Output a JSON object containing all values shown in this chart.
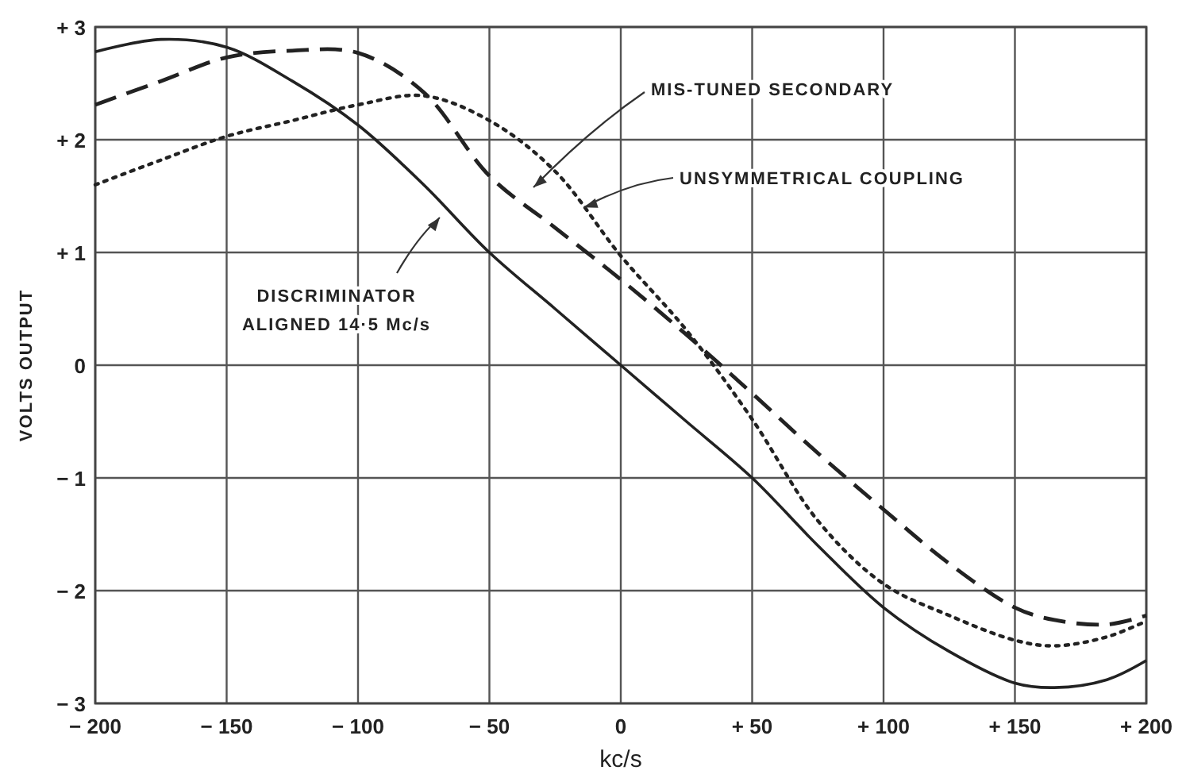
{
  "chart_data": {
    "type": "line",
    "xlabel": "kc/s",
    "ylabel": "VOLTS OUTPUT",
    "xlim": [
      -200,
      200
    ],
    "ylim": [
      -3,
      3
    ],
    "xticks": [
      {
        "value": -200,
        "label": "− 200"
      },
      {
        "value": -150,
        "label": "− 150"
      },
      {
        "value": -100,
        "label": "− 100"
      },
      {
        "value": -50,
        "label": "− 50"
      },
      0,
      {
        "value": 50,
        "label": "+ 50"
      },
      {
        "value": 100,
        "label": "+ 100"
      },
      {
        "value": 150,
        "label": "+ 150"
      },
      {
        "value": 200,
        "label": "+ 200"
      }
    ],
    "yticks": [
      {
        "value": -3,
        "label": "− 3"
      },
      {
        "value": -2,
        "label": "− 2"
      },
      {
        "value": -1,
        "label": "− 1"
      },
      0,
      {
        "value": 1,
        "label": "+ 1"
      },
      {
        "value": 2,
        "label": "+ 2"
      },
      {
        "value": 3,
        "label": "+ 3"
      }
    ],
    "grid": true,
    "x": [
      -200,
      -175,
      -150,
      -125,
      -100,
      -75,
      -50,
      -25,
      0,
      25,
      50,
      75,
      100,
      125,
      150,
      165,
      185,
      200
    ],
    "series": [
      {
        "color": "#222222",
        "line_style": "solid",
        "values": [
          2.78,
          2.89,
          2.82,
          2.52,
          2.13,
          1.6,
          1.0,
          0.5,
          0,
          -0.5,
          -1.0,
          -1.6,
          -2.15,
          -2.54,
          -2.82,
          -2.86,
          -2.79,
          -2.62
        ]
      },
      {
        "color": "#222222",
        "line_style": "dashed",
        "values": [
          2.31,
          2.52,
          2.73,
          2.79,
          2.77,
          2.42,
          1.68,
          1.22,
          0.76,
          0.27,
          -0.25,
          -0.78,
          -1.28,
          -1.76,
          -2.15,
          -2.26,
          -2.3,
          -2.22
        ]
      },
      {
        "color": "#222222",
        "line_style": "dotted",
        "values": [
          1.6,
          1.82,
          2.03,
          2.17,
          2.31,
          2.39,
          2.17,
          1.72,
          0.97,
          0.31,
          -0.48,
          -1.38,
          -1.94,
          -2.22,
          -2.44,
          -2.49,
          -2.41,
          -2.27
        ]
      }
    ],
    "annotations": [
      "MIS-TUNED SECONDARY",
      {
        "text": "UNSYMMETRICAL COUPLING",
        "x": -14,
        "y": 1.4
      },
      "DISCRIMINATOR\nALIGNED 14·5 Mc/s"
    ]
  }
}
